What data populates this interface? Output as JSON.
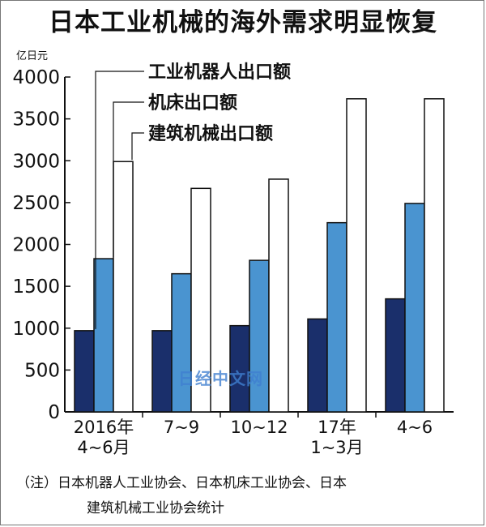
{
  "title": "日本工业机械的海外需求明显恢复",
  "unit_label": "亿日元",
  "note_line1": "（注）日本机器人工业协会、日本机床工业协会、日本",
  "note_line2": "建筑机械工业协会统计",
  "watermark": "日经中文网",
  "colors": {
    "robot": "#1a2f6b",
    "machine_tool": "#4a94d0",
    "construction": "#ffffff",
    "outline": "#111111"
  },
  "chart_data": {
    "type": "bar",
    "title": "日本工业机械的海外需求明显恢复",
    "ylabel": "亿日元",
    "ylim": [
      0,
      4000
    ],
    "yticks": [
      0,
      500,
      1000,
      1500,
      2000,
      2500,
      3000,
      3500,
      4000
    ],
    "categories": [
      [
        "2016年",
        "4~6月"
      ],
      [
        "7~9"
      ],
      [
        "10~12"
      ],
      [
        "17年",
        "1~3月"
      ],
      [
        "4~6"
      ]
    ],
    "series": [
      {
        "name": "工业机器人出口额",
        "values": [
          970,
          970,
          1030,
          1110,
          1350
        ]
      },
      {
        "name": "机床出口额",
        "values": [
          1830,
          1650,
          1810,
          2260,
          2490
        ]
      },
      {
        "name": "建筑机械出口额",
        "values": [
          2990,
          2670,
          2780,
          3740,
          3740
        ]
      }
    ],
    "grid": false,
    "legend": "top-left"
  }
}
